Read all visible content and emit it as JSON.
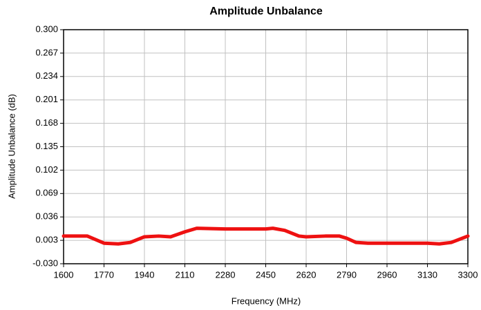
{
  "chart_data": {
    "type": "line",
    "title": "Amplitude Unbalance",
    "x_label": "Frequency (MHz)",
    "y_label": "Amplitude Unbalance (dB)",
    "x": [
      1600,
      1700,
      1770,
      1830,
      1880,
      1940,
      2000,
      2050,
      2110,
      2160,
      2280,
      2450,
      2480,
      2530,
      2590,
      2620,
      2700,
      2760,
      2790,
      2830,
      2880,
      2960,
      3130,
      3180,
      3230,
      3300
    ],
    "series": [
      {
        "name": "Amplitude Unbalance",
        "color": "#ee1111",
        "values": [
          0.009,
          0.009,
          -0.001,
          -0.002,
          0.0,
          0.008,
          0.009,
          0.008,
          0.015,
          0.02,
          0.019,
          0.019,
          0.02,
          0.017,
          0.009,
          0.008,
          0.009,
          0.009,
          0.006,
          0.0,
          -0.001,
          -0.001,
          -0.001,
          -0.002,
          0.0,
          0.009
        ]
      }
    ],
    "xlim": [
      1600,
      3300
    ],
    "xticks": [
      1600,
      1770,
      1940,
      2110,
      2280,
      2450,
      2620,
      2790,
      2960,
      3130,
      3300
    ],
    "ylim": [
      -0.03,
      0.3
    ],
    "yticks": [
      {
        "value": -0.03,
        "label": "-0.030"
      },
      0.003,
      0.036,
      0.069,
      0.102,
      0.135,
      0.168,
      0.201,
      0.234,
      0.267,
      {
        "value": 0.3,
        "label": "0.300"
      }
    ],
    "grid": true
  }
}
